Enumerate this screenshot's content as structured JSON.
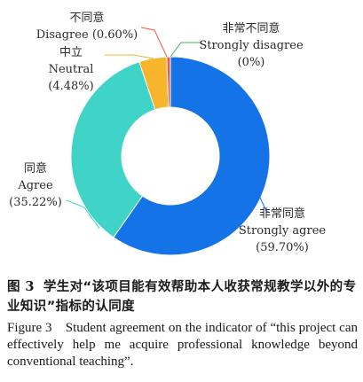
{
  "chart_data": {
    "type": "pie",
    "style": "donut",
    "colors": [
      "#1473e6",
      "#3fd4c7",
      "#f7b52c",
      "#f05a45",
      "#4caf50"
    ],
    "slices": [
      {
        "label_cn": "非常同意",
        "label_en": "Strongly agree",
        "value": 59.7,
        "display": "(59.70%)"
      },
      {
        "label_cn": "同意",
        "label_en": "Agree",
        "value": 35.22,
        "display": "(35.22%)"
      },
      {
        "label_cn": "中立",
        "label_en": "Neutral",
        "value": 4.48,
        "display": "(4.48%)"
      },
      {
        "label_cn": "不同意",
        "label_en": "Disagree",
        "value": 0.6,
        "display": "(0.60%)"
      },
      {
        "label_cn": "非常不同意",
        "label_en": "Strongly disagree",
        "value": 0,
        "display": "(0%)"
      }
    ]
  },
  "caption": {
    "cn_figure_no": "图 3",
    "cn_text": "学生对“该项目能有效帮助本人收获常规教学以外的专业知识”指标的认同度",
    "en_text": "Figure 3　Student agreement on the indicator of “this project can effectively help me acquire professional knowledge beyond conventional teaching”."
  }
}
